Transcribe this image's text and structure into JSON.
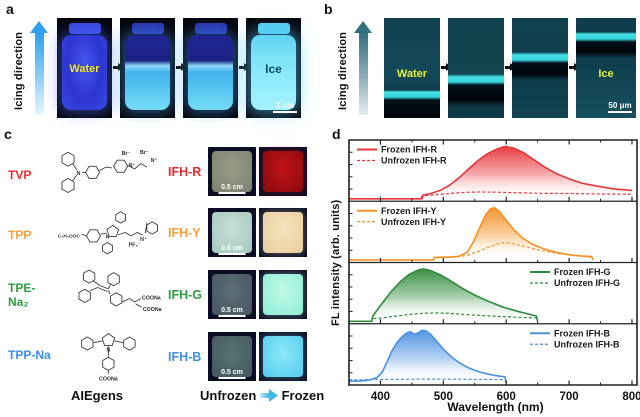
{
  "panels": {
    "a": {
      "letter": "a",
      "arrow_label": "Icing direction",
      "photos": [
        {
          "label": "Water"
        },
        {
          "label": ""
        },
        {
          "label": ""
        },
        {
          "label": "Ice",
          "scale_bar": "1 cm"
        }
      ]
    },
    "b": {
      "letter": "b",
      "arrow_label": "Icing direction",
      "photos": [
        {
          "label": "Water"
        },
        {
          "label": ""
        },
        {
          "label": ""
        },
        {
          "label": "Ice",
          "scale_bar": "50 μm"
        }
      ]
    },
    "c": {
      "letter": "c",
      "molecules": [
        {
          "name": "TVP",
          "color": "#e63030",
          "substituents": [
            "N",
            "Br⁻",
            "N⁺",
            "Br⁻",
            "N⁺"
          ]
        },
        {
          "name": "TPP",
          "color": "#f5a03c",
          "substituents": [
            "C₂H₅OOC",
            "N",
            "PF₆⁻",
            "N⁺"
          ]
        },
        {
          "name": "TPE-Na₂",
          "color": "#2f9e41",
          "substituents": [
            "COONa",
            "COONa"
          ]
        },
        {
          "name": "TPP-Na",
          "color": "#3f8fe8",
          "substituents": [
            "N",
            "COONa"
          ]
        }
      ],
      "hydrogels": [
        {
          "name": "IFH-R",
          "color": "#e63030",
          "scale_bar": "0.5 cm",
          "unfrozen_colors": [
            "#989c87",
            "#7e8370"
          ],
          "frozen_colors": [
            "#c01418",
            "#8c0a0e"
          ]
        },
        {
          "name": "IFH-Y",
          "color": "#f5a03c",
          "scale_bar": "0.5 cm",
          "unfrozen_colors": [
            "#c8e0d8",
            "#a8c8c0"
          ],
          "frozen_colors": [
            "#f6e2bd",
            "#e8cf9e"
          ]
        },
        {
          "name": "IFH-G",
          "color": "#2f9e41",
          "scale_bar": "0.5 cm",
          "unfrozen_colors": [
            "#5d6f7c",
            "#48565f"
          ],
          "frozen_colors": [
            "#c2f8e6",
            "#8eeed6"
          ]
        },
        {
          "name": "IFH-B",
          "color": "#3f8fe8",
          "scale_bar": "0.5 cm",
          "unfrozen_colors": [
            "#577376",
            "#45595e"
          ],
          "frozen_colors": [
            "#8ce8f8",
            "#55cdef"
          ]
        }
      ],
      "captions": {
        "aiegens": "AIEgens",
        "unfrozen": "Unfrozen",
        "frozen": "Frozen"
      }
    },
    "d": {
      "letter": "d"
    }
  },
  "chart_data": {
    "type": "line",
    "xlabel": "Wavelength (nm)",
    "ylabel": "FL intensity (arb. units)",
    "x_range": [
      350,
      808
    ],
    "x_ticks": [
      400,
      500,
      600,
      700,
      800
    ],
    "x_minor_ticks": [
      450,
      550,
      650,
      750
    ],
    "grid": false,
    "panels": [
      {
        "color": "#e8353a",
        "legend_pos": "left",
        "series": [
          {
            "name": "Frozen IFH-R",
            "style": "solid",
            "points": [
              [
                350,
                0
              ],
              [
                466,
                0
              ],
              [
                468,
                0.07
              ],
              [
                480,
                0.1
              ],
              [
                495,
                0.16
              ],
              [
                510,
                0.26
              ],
              [
                525,
                0.4
              ],
              [
                540,
                0.57
              ],
              [
                555,
                0.73
              ],
              [
                570,
                0.86
              ],
              [
                585,
                0.95
              ],
              [
                598,
                1.0
              ],
              [
                612,
                0.97
              ],
              [
                628,
                0.88
              ],
              [
                645,
                0.74
              ],
              [
                662,
                0.6
              ],
              [
                680,
                0.48
              ],
              [
                700,
                0.38
              ],
              [
                720,
                0.3
              ],
              [
                745,
                0.24
              ],
              [
                770,
                0.19
              ],
              [
                800,
                0.16
              ]
            ]
          },
          {
            "name": "Unfrozen IFH-R",
            "style": "dashed",
            "points": [
              [
                350,
                0
              ],
              [
                464,
                0
              ],
              [
                466,
                0.05
              ],
              [
                480,
                0.07
              ],
              [
                500,
                0.09
              ],
              [
                520,
                0.11
              ],
              [
                540,
                0.125
              ],
              [
                560,
                0.13
              ],
              [
                585,
                0.125
              ],
              [
                615,
                0.115
              ],
              [
                650,
                0.105
              ],
              [
                700,
                0.1
              ],
              [
                750,
                0.09
              ],
              [
                800,
                0.085
              ]
            ]
          }
        ]
      },
      {
        "color": "#f39022",
        "legend_pos": "left",
        "series": [
          {
            "name": "Frozen IFH-Y",
            "style": "solid",
            "points": [
              [
                350,
                0
              ],
              [
                484,
                0
              ],
              [
                486,
                0.05
              ],
              [
                510,
                0.055
              ],
              [
                525,
                0.07
              ],
              [
                538,
                0.15
              ],
              [
                548,
                0.35
              ],
              [
                558,
                0.62
              ],
              [
                567,
                0.86
              ],
              [
                575,
                0.98
              ],
              [
                581,
                1.0
              ],
              [
                590,
                0.92
              ],
              [
                600,
                0.76
              ],
              [
                612,
                0.58
              ],
              [
                625,
                0.43
              ],
              [
                640,
                0.31
              ],
              [
                658,
                0.22
              ],
              [
                678,
                0.15
              ],
              [
                700,
                0.1
              ],
              [
                720,
                0.075
              ],
              [
                736,
                0.06
              ],
              [
                738,
                0
              ]
            ]
          },
          {
            "name": "Unfrozen IFH-Y",
            "style": "dashed",
            "points": [
              [
                350,
                0
              ],
              [
                484,
                0
              ],
              [
                486,
                0.04
              ],
              [
                510,
                0.05
              ],
              [
                535,
                0.08
              ],
              [
                555,
                0.16
              ],
              [
                575,
                0.26
              ],
              [
                590,
                0.32
              ],
              [
                602,
                0.33
              ],
              [
                615,
                0.3
              ],
              [
                632,
                0.25
              ],
              [
                652,
                0.19
              ],
              [
                675,
                0.14
              ],
              [
                700,
                0.1
              ],
              [
                720,
                0.08
              ],
              [
                736,
                0.07
              ],
              [
                738,
                0
              ]
            ]
          }
        ]
      },
      {
        "color": "#2e8b3c",
        "legend_pos": "right",
        "series": [
          {
            "name": "Frozen IFH-G",
            "style": "solid",
            "points": [
              [
                350,
                0
              ],
              [
                386,
                0
              ],
              [
                388,
                0.1
              ],
              [
                395,
                0.22
              ],
              [
                405,
                0.38
              ],
              [
                418,
                0.58
              ],
              [
                432,
                0.76
              ],
              [
                446,
                0.9
              ],
              [
                460,
                0.98
              ],
              [
                468,
                1.0
              ],
              [
                480,
                0.97
              ],
              [
                495,
                0.89
              ],
              [
                512,
                0.77
              ],
              [
                530,
                0.63
              ],
              [
                550,
                0.5
              ],
              [
                572,
                0.38
              ],
              [
                595,
                0.27
              ],
              [
                618,
                0.19
              ],
              [
                638,
                0.13
              ],
              [
                648,
                0.1
              ],
              [
                650,
                0
              ]
            ]
          },
          {
            "name": "Unfrozen IFH-G",
            "style": "dashed",
            "points": [
              [
                350,
                0
              ],
              [
                386,
                0
              ],
              [
                388,
                0.05
              ],
              [
                400,
                0.06
              ],
              [
                420,
                0.09
              ],
              [
                445,
                0.13
              ],
              [
                470,
                0.155
              ],
              [
                490,
                0.16
              ],
              [
                510,
                0.15
              ],
              [
                535,
                0.13
              ],
              [
                560,
                0.11
              ],
              [
                590,
                0.09
              ],
              [
                620,
                0.075
              ],
              [
                648,
                0.065
              ],
              [
                650,
                0
              ]
            ]
          }
        ]
      },
      {
        "color": "#4a90e2",
        "legend_pos": "right",
        "series": [
          {
            "name": "Frozen IFH-B",
            "style": "solid",
            "points": [
              [
                350,
                0.025
              ],
              [
                370,
                0.03
              ],
              [
                385,
                0.05
              ],
              [
                395,
                0.1
              ],
              [
                403,
                0.2
              ],
              [
                410,
                0.38
              ],
              [
                418,
                0.6
              ],
              [
                426,
                0.76
              ],
              [
                434,
                0.87
              ],
              [
                442,
                0.95
              ],
              [
                448,
                0.97
              ],
              [
                454,
                0.92
              ],
              [
                460,
                0.95
              ],
              [
                466,
                1.0
              ],
              [
                472,
                0.99
              ],
              [
                480,
                0.92
              ],
              [
                490,
                0.78
              ],
              [
                500,
                0.64
              ],
              [
                512,
                0.5
              ],
              [
                525,
                0.38
              ],
              [
                540,
                0.28
              ],
              [
                558,
                0.2
              ],
              [
                575,
                0.15
              ],
              [
                590,
                0.12
              ],
              [
                598,
                0.11
              ],
              [
                600,
                0
              ]
            ]
          },
          {
            "name": "Unfrozen IFH-B",
            "style": "dashed",
            "points": [
              [
                350,
                0.05
              ],
              [
                380,
                0.055
              ],
              [
                420,
                0.06
              ],
              [
                460,
                0.065
              ],
              [
                500,
                0.065
              ],
              [
                540,
                0.06
              ],
              [
                570,
                0.058
              ],
              [
                598,
                0.055
              ],
              [
                600,
                0
              ]
            ]
          }
        ]
      }
    ]
  }
}
